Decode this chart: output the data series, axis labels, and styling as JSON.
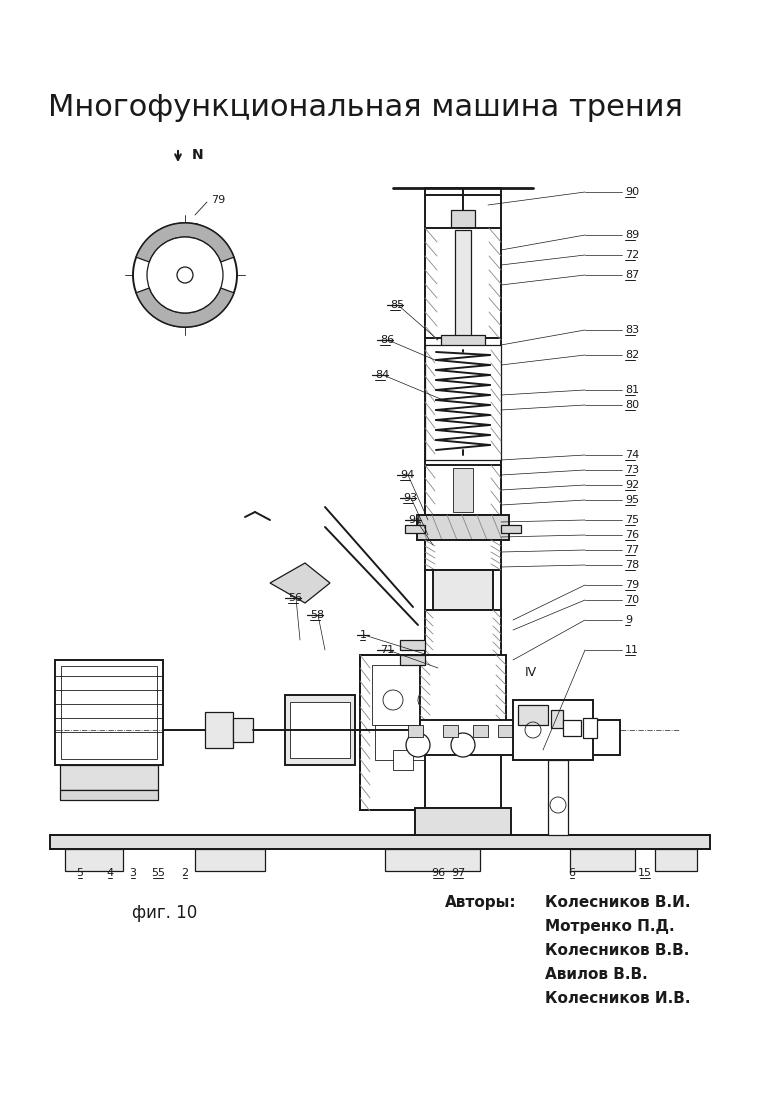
{
  "title": "Многофункциональная машина трения",
  "fig_label": "фиг. 10",
  "authors_label": "Авторы:",
  "authors": [
    "Колесников В.И.",
    "Мотренко П.Д.",
    "Колесников В.В.",
    "Авилов В.В.",
    "Колесников И.В."
  ],
  "bg_color": "#ffffff",
  "line_color": "#1a1a1a",
  "title_fontsize": 22,
  "label_fontsize": 9,
  "small_fontsize": 8
}
